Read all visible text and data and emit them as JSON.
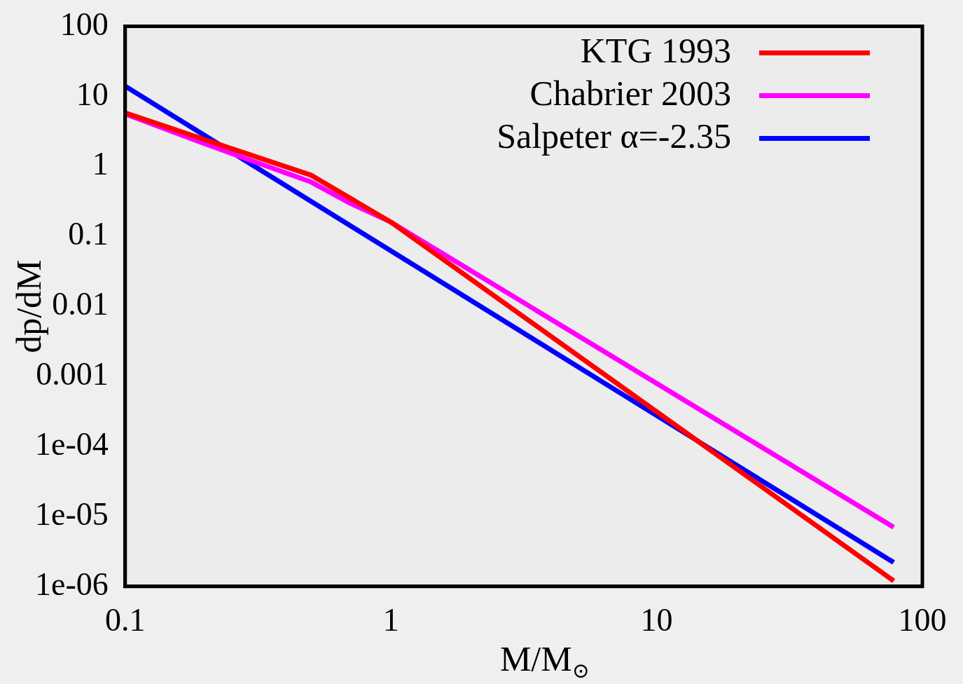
{
  "chart_data": {
    "type": "line",
    "xlabel": "M/M$_{⊙}$",
    "ylabel": "dp/dM",
    "log": "xy",
    "grid": false,
    "legend": "top right",
    "marker": "none",
    "line_style": "solid",
    "xlim": [
      0.1,
      100
    ],
    "xticks": [
      0.1,
      1,
      10,
      100
    ],
    "ylim": [
      1e-06,
      100
    ],
    "yticks": [
      {
        "value": 1e-06,
        "label": "1e-06"
      },
      {
        "value": 1e-05,
        "label": "1e-05"
      },
      {
        "value": 0.0001,
        "label": "1e-04"
      },
      0.001,
      0.01,
      0.1,
      1,
      10,
      100
    ],
    "series": [
      {
        "name": "KTG 1993",
        "color": "#ff0000",
        "x": [
          0.1,
          0.5,
          1,
          78
        ],
        "values": [
          5.8,
          0.75,
          0.16,
          1.2e-06
        ]
      },
      {
        "name": "Chabrier 2003",
        "color": "#ff00ff",
        "x": [
          0.1,
          0.2,
          0.3,
          0.5,
          0.7,
          1,
          78
        ],
        "values": [
          5.6,
          2.1,
          1.2,
          0.6,
          0.3,
          0.16,
          7e-06
        ]
      },
      {
        "name": "Salpeter α=-2.35",
        "color": "#0000ff",
        "x": [
          0.1,
          78
        ],
        "values": [
          14,
          2.2e-06
        ]
      }
    ]
  }
}
